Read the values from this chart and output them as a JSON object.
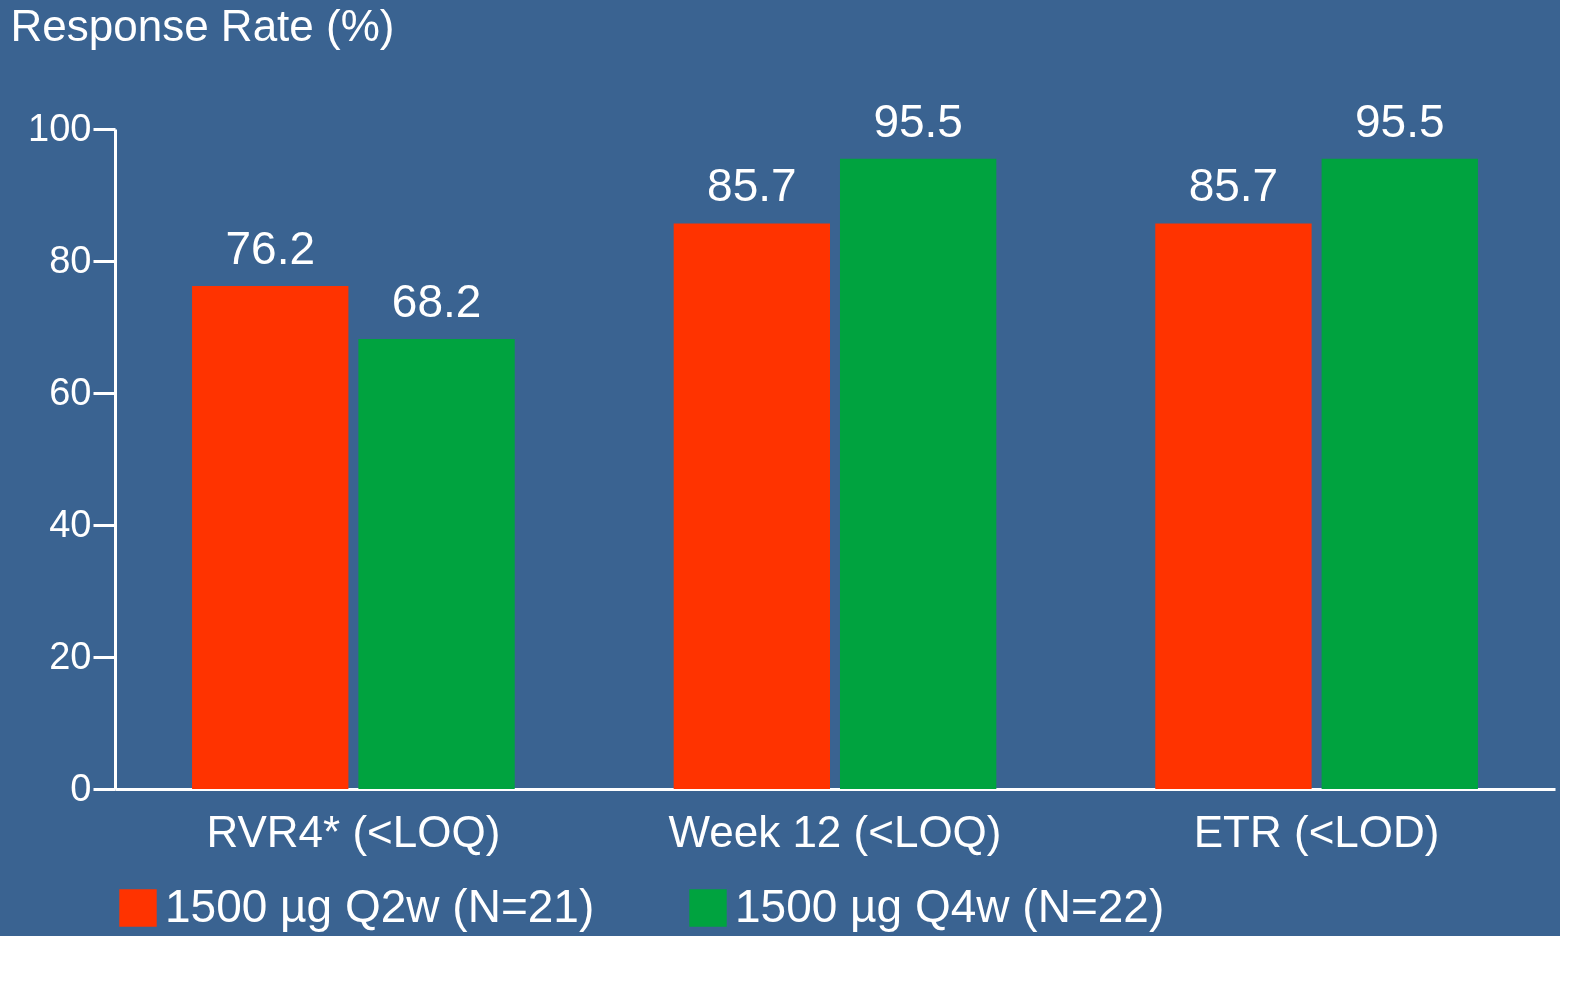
{
  "chart_data": {
    "type": "bar",
    "ylabel": "Response Rate (%)",
    "categories": [
      "RVR4* (<LOQ)",
      "Week 12 (<LOQ)",
      "ETR (<LOD)"
    ],
    "series": [
      {
        "name": "1500 µg Q2w (N=21)",
        "color": "#ff3300",
        "values": [
          76.2,
          85.7,
          85.7
        ]
      },
      {
        "name": "1500 µg Q4w (N=22)",
        "color": "#00a33f",
        "values": [
          68.2,
          95.5,
          95.5
        ]
      }
    ],
    "ylim": [
      0,
      100
    ],
    "yticks": [
      0,
      20,
      40,
      60,
      80,
      100
    ],
    "data_labels": true,
    "grid": false,
    "legend": "bottom"
  }
}
